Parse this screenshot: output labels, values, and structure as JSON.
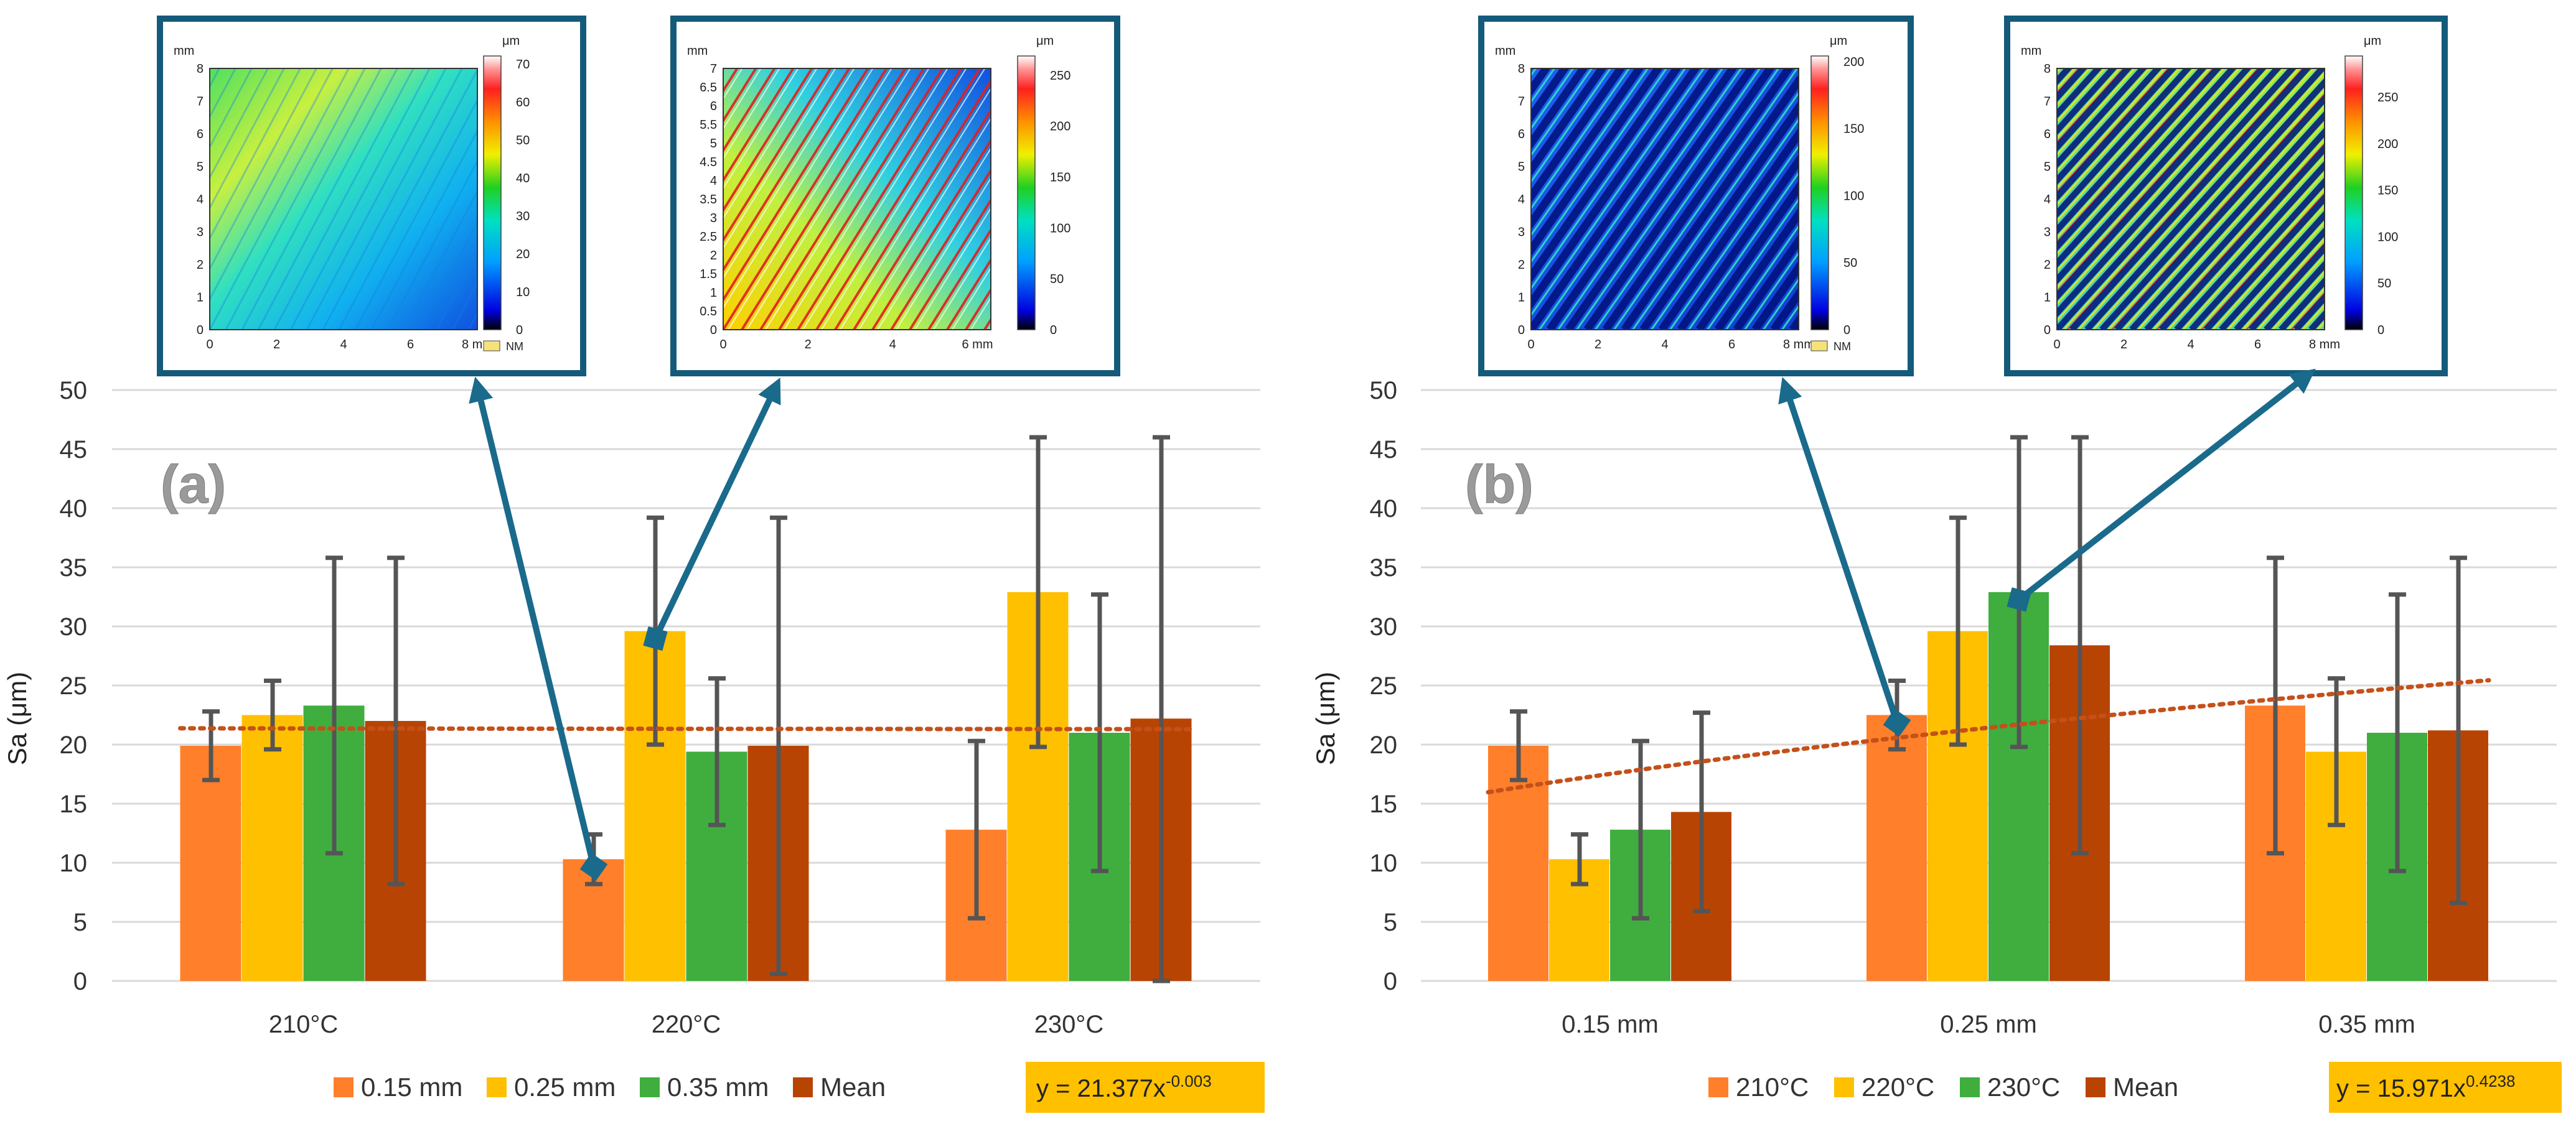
{
  "colors": {
    "s1": "#FF7F2A",
    "s2": "#FFC000",
    "s3": "#3FAE3F",
    "s4": "#B84404",
    "trend": "#C4501A",
    "errbar": "#555555",
    "grid": "#D9D9D9",
    "inset_border": "#145A7A",
    "arrow": "#1A6A8C",
    "eq_bg": "#FFC000"
  },
  "chart_data": [
    {
      "type": "bar",
      "panel_label": "(a)",
      "ylabel": "Sa (μm)",
      "xlabel": "",
      "ylim": [
        0,
        50
      ],
      "yticks": [
        "0",
        "5",
        "10",
        "15",
        "20",
        "25",
        "30",
        "35",
        "40",
        "45",
        "50"
      ],
      "grid": true,
      "categories": [
        "210°C",
        "220°C",
        "230°C"
      ],
      "series": [
        {
          "name": "0.15 mm",
          "values": [
            19.9,
            10.3,
            12.8
          ],
          "err": [
            2.9,
            2.1,
            7.5
          ]
        },
        {
          "name": "0.25 mm",
          "values": [
            22.5,
            29.6,
            32.9
          ],
          "err": [
            2.9,
            9.6,
            13.1
          ]
        },
        {
          "name": "0.35 mm",
          "values": [
            23.3,
            19.4,
            21.0
          ],
          "err": [
            12.5,
            6.2,
            11.7
          ]
        },
        {
          "name": "Mean",
          "values": [
            22.0,
            19.9,
            22.2
          ],
          "err": [
            13.8,
            19.3,
            23.8
          ]
        }
      ],
      "trendline": {
        "type": "power",
        "a": 21.377,
        "b": -0.003
      },
      "equation": {
        "base": "y = 21.377x",
        "exp": "-0.003"
      },
      "legend_position": "bottom"
    },
    {
      "type": "bar",
      "panel_label": "(b)",
      "ylabel": "Sa (μm)",
      "xlabel": "",
      "ylim": [
        0,
        50
      ],
      "yticks": [
        "0",
        "5",
        "10",
        "15",
        "20",
        "25",
        "30",
        "35",
        "40",
        "45",
        "50"
      ],
      "grid": true,
      "categories": [
        "0.15 mm",
        "0.25 mm",
        "0.35 mm"
      ],
      "series": [
        {
          "name": "210°C",
          "values": [
            19.9,
            22.5,
            23.3
          ],
          "err": [
            2.9,
            2.9,
            12.5
          ]
        },
        {
          "name": "220°C",
          "values": [
            10.3,
            29.6,
            19.4
          ],
          "err": [
            2.1,
            9.6,
            6.2
          ]
        },
        {
          "name": "230°C",
          "values": [
            12.8,
            32.9,
            21.0
          ],
          "err": [
            7.5,
            13.1,
            11.7
          ]
        },
        {
          "name": "Mean",
          "values": [
            14.3,
            28.4,
            21.2
          ],
          "err": [
            8.4,
            17.6,
            14.6
          ]
        }
      ],
      "trendline": {
        "type": "power",
        "a": 15.971,
        "b": 0.4238
      },
      "equation": {
        "base": "y = 15.971x",
        "exp": "0.4238"
      },
      "legend_position": "bottom"
    }
  ],
  "insets": [
    {
      "id": "a1",
      "x_unit": "mm",
      "y_unit": "mm",
      "z_unit": "μm",
      "xticks": [
        "0",
        "2",
        "4",
        "6",
        "8 mm"
      ],
      "yticks": [
        "0",
        "1",
        "2",
        "3",
        "4",
        "5",
        "6",
        "7",
        "8"
      ],
      "cticks": [
        "0",
        "10",
        "20",
        "30",
        "40",
        "50",
        "60",
        "70"
      ],
      "nm": "NM",
      "points_to": {
        "panel": 0,
        "series": 0,
        "category": 1
      }
    },
    {
      "id": "a2",
      "x_unit": "mm",
      "y_unit": "mm",
      "z_unit": "μm",
      "xticks": [
        "0",
        "2",
        "4",
        "6 mm"
      ],
      "yticks": [
        "0",
        "0.5",
        "1",
        "1.5",
        "2",
        "2.5",
        "3",
        "3.5",
        "4",
        "4.5",
        "5",
        "5.5",
        "6",
        "6.5",
        "7"
      ],
      "cticks": [
        "0",
        "50",
        "100",
        "150",
        "200",
        "250"
      ],
      "points_to": {
        "panel": 0,
        "series": 1,
        "category": 1
      }
    },
    {
      "id": "b1",
      "x_unit": "mm",
      "y_unit": "mm",
      "z_unit": "μm",
      "xticks": [
        "0",
        "2",
        "4",
        "6",
        "8 mm"
      ],
      "yticks": [
        "0",
        "1",
        "2",
        "3",
        "4",
        "5",
        "6",
        "7",
        "8"
      ],
      "cticks": [
        "0",
        "50",
        "100",
        "150",
        "200"
      ],
      "nm": "NM",
      "points_to": {
        "panel": 1,
        "series": 0,
        "category": 1
      }
    },
    {
      "id": "b2",
      "x_unit": "mm",
      "y_unit": "mm",
      "z_unit": "μm",
      "xticks": [
        "0",
        "2",
        "4",
        "6",
        "8 mm"
      ],
      "yticks": [
        "0",
        "1",
        "2",
        "3",
        "4",
        "5",
        "6",
        "7",
        "8"
      ],
      "cticks": [
        "0",
        "50",
        "100",
        "150",
        "200",
        "250"
      ],
      "points_to": {
        "panel": 1,
        "series": 2,
        "category": 1
      }
    }
  ]
}
